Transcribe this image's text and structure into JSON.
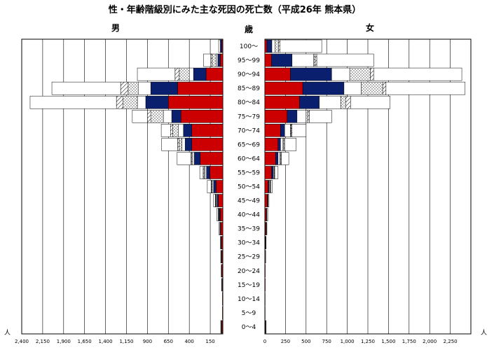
{
  "chart_data": {
    "type": "bar",
    "orientation": "horizontal-pyramid",
    "stacked": true,
    "title": "性・年齢階級別にみた主な死因の死亡数（平成26年 熊本県）",
    "left_header": "男",
    "center_header": "歳",
    "right_header": "女",
    "unit": "人",
    "categories": [
      "100～",
      "95～99",
      "90～94",
      "85～89",
      "80～84",
      "75～79",
      "70～74",
      "65～69",
      "60～64",
      "55～59",
      "50～54",
      "45～49",
      "40～44",
      "35～39",
      "30～34",
      "25～29",
      "20～24",
      "15～19",
      "10～14",
      "5～9",
      "0～4"
    ],
    "male_axis": {
      "max": 2400,
      "ticks": [
        "2,400",
        "2,150",
        "1,900",
        "1,650",
        "1,400",
        "1,150",
        "900",
        "650",
        "400",
        "150"
      ],
      "tick_values": [
        2400,
        2150,
        1900,
        1650,
        1400,
        1150,
        900,
        650,
        400,
        150
      ]
    },
    "female_axis": {
      "max": 2500,
      "ticks": [
        "0",
        "250",
        "500",
        "750",
        "1,000",
        "1,250",
        "1,500",
        "1,750",
        "2,000",
        "2,250"
      ],
      "tick_values": [
        0,
        250,
        500,
        750,
        1000,
        1250,
        1500,
        1750,
        2000,
        2250
      ]
    },
    "segments": [
      {
        "key": "red",
        "color": "#cc0000",
        "pattern": "solid"
      },
      {
        "key": "navy",
        "color": "#0a1f6e",
        "pattern": "solid"
      },
      {
        "key": "white1",
        "color": "#ffffff",
        "pattern": "plain"
      },
      {
        "key": "dots",
        "color": "#ffffff",
        "pattern": "dots"
      },
      {
        "key": "hatch",
        "color": "#ffffff",
        "pattern": "hatch"
      },
      {
        "key": "other",
        "color": "#ffffff",
        "pattern": "plain"
      }
    ],
    "male": [
      [
        10,
        20,
        0,
        0,
        0,
        20
      ],
      [
        30,
        30,
        20,
        50,
        15,
        85
      ],
      [
        200,
        150,
        50,
        120,
        50,
        450
      ],
      [
        540,
        320,
        150,
        120,
        90,
        820
      ],
      [
        650,
        270,
        100,
        170,
        80,
        1030
      ],
      [
        500,
        110,
        100,
        150,
        40,
        180
      ],
      [
        370,
        100,
        60,
        70,
        25,
        110
      ],
      [
        370,
        80,
        40,
        30,
        20,
        190
      ],
      [
        270,
        70,
        20,
        10,
        10,
        165
      ],
      [
        155,
        40,
        20,
        10,
        10,
        40
      ],
      [
        80,
        30,
        15,
        10,
        5,
        45
      ],
      [
        55,
        15,
        10,
        5,
        5,
        20
      ],
      [
        30,
        10,
        5,
        5,
        5,
        15
      ],
      [
        25,
        5,
        5,
        0,
        0,
        10
      ],
      [
        15,
        5,
        5,
        0,
        0,
        5
      ],
      [
        10,
        5,
        5,
        0,
        0,
        5
      ],
      [
        10,
        0,
        5,
        0,
        0,
        5
      ],
      [
        5,
        0,
        5,
        0,
        0,
        5
      ],
      [
        5,
        0,
        0,
        0,
        0,
        0
      ],
      [
        5,
        0,
        0,
        0,
        0,
        0
      ],
      [
        10,
        5,
        5,
        0,
        0,
        5
      ]
    ],
    "female": [
      [
        25,
        60,
        40,
        40,
        20,
        505
      ],
      [
        80,
        250,
        260,
        20,
        20,
        690
      ],
      [
        310,
        500,
        220,
        250,
        40,
        1070
      ],
      [
        460,
        500,
        210,
        260,
        40,
        960
      ],
      [
        420,
        240,
        260,
        60,
        60,
        480
      ],
      [
        270,
        120,
        110,
        20,
        20,
        270
      ],
      [
        190,
        50,
        70,
        10,
        10,
        170
      ],
      [
        160,
        30,
        30,
        10,
        10,
        140
      ],
      [
        130,
        30,
        20,
        10,
        10,
        90
      ],
      [
        80,
        20,
        10,
        5,
        5,
        40
      ],
      [
        40,
        10,
        10,
        5,
        5,
        20
      ],
      [
        30,
        5,
        5,
        0,
        0,
        10
      ],
      [
        15,
        5,
        5,
        0,
        0,
        10
      ],
      [
        10,
        5,
        5,
        0,
        0,
        5
      ],
      [
        5,
        5,
        0,
        0,
        0,
        5
      ],
      [
        5,
        0,
        0,
        0,
        0,
        5
      ],
      [
        5,
        0,
        0,
        0,
        0,
        0
      ],
      [
        5,
        0,
        0,
        0,
        0,
        0
      ],
      [
        0,
        0,
        0,
        0,
        0,
        5
      ],
      [
        0,
        0,
        0,
        0,
        0,
        5
      ],
      [
        5,
        0,
        5,
        0,
        0,
        5
      ]
    ]
  }
}
